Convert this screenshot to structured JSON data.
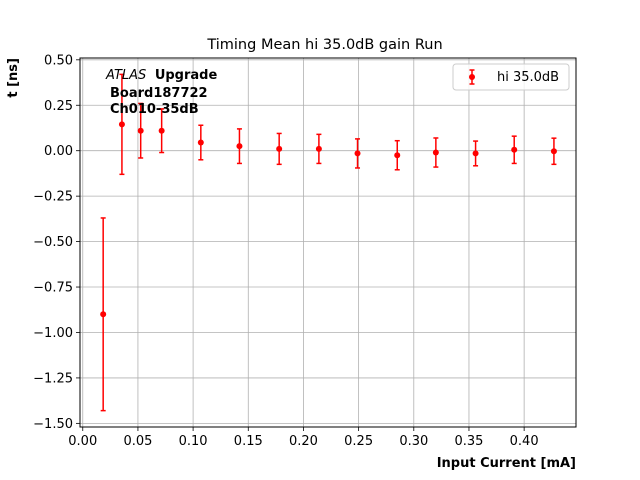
{
  "chart_data": {
    "type": "scatter",
    "title": "Timing Mean hi 35.0dB gain Run",
    "xlabel": "Input Current [mA]",
    "ylabel": "t [ns]",
    "xlim": [
      -0.0025,
      0.447
    ],
    "ylim": [
      -1.52,
      0.51
    ],
    "xticks": [
      0.0,
      0.05,
      0.1,
      0.15,
      0.2,
      0.25,
      0.3,
      0.35,
      0.4
    ],
    "xtick_labels": [
      "0.00",
      "0.05",
      "0.10",
      "0.15",
      "0.20",
      "0.25",
      "0.30",
      "0.35",
      "0.40"
    ],
    "yticks": [
      -1.5,
      -1.25,
      -1.0,
      -0.75,
      -0.5,
      -0.25,
      0.0,
      0.25,
      0.5
    ],
    "ytick_labels": [
      "−1.50",
      "−1.25",
      "−1.00",
      "−0.75",
      "−0.50",
      "−0.25",
      "0.00",
      "0.25",
      "0.50"
    ],
    "grid": true,
    "legend_position": "top-right",
    "series": [
      {
        "name": "hi 35.0dB",
        "color": "#ff0000",
        "x": [
          0.0185,
          0.0355,
          0.0525,
          0.0715,
          0.107,
          0.142,
          0.178,
          0.214,
          0.249,
          0.285,
          0.32,
          0.356,
          0.391,
          0.427
        ],
        "y": [
          -0.9,
          0.145,
          0.11,
          0.11,
          0.045,
          0.025,
          0.01,
          0.01,
          -0.015,
          -0.025,
          -0.01,
          -0.015,
          0.005,
          -0.003
        ],
        "yerr": [
          0.53,
          0.275,
          0.15,
          0.12,
          0.095,
          0.095,
          0.085,
          0.08,
          0.08,
          0.08,
          0.08,
          0.068,
          0.075,
          0.072
        ]
      }
    ],
    "annotation": {
      "atlas": "ATLAS",
      "upgrade": "Upgrade",
      "board": "Board187722",
      "channel": "Ch010-35dB"
    }
  }
}
